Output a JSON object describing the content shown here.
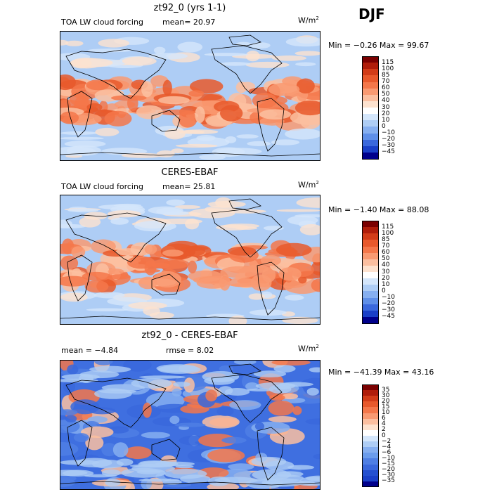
{
  "season": "DJF",
  "panels": [
    {
      "title": "zt92_0 (yrs 1-1)",
      "left_label": "TOA LW cloud forcing",
      "mid_label": "mean=  20.97",
      "unit": "W/m",
      "unit_sup": "2",
      "minmax": "Min =  −0.26 Max =  99.67",
      "colorbar": {
        "levels": [
          "115",
          "100",
          "85",
          "70",
          "60",
          "50",
          "40",
          "30",
          "20",
          "10",
          "0",
          "−10",
          "−20",
          "−30",
          "−45"
        ],
        "colors": [
          "#7a0000",
          "#b01d0a",
          "#d23c18",
          "#e8592c",
          "#f4774a",
          "#f99a72",
          "#fbbfa0",
          "#fde2cf",
          "#ffffff",
          "#d4e6fb",
          "#aecdf5",
          "#86aff0",
          "#5f8fe8",
          "#3a68dc",
          "#1a40c8",
          "#00008b"
        ]
      },
      "chart_data": {
        "type": "heatmap",
        "title": "zt92_0 (yrs 1-1)",
        "variable": "TOA LW cloud forcing",
        "units": "W/m2",
        "mean": 20.97,
        "min": -0.26,
        "max": 99.67,
        "contour_levels": [
          -45,
          -30,
          -20,
          -10,
          0,
          10,
          20,
          30,
          40,
          50,
          60,
          70,
          85,
          100,
          115
        ]
      }
    },
    {
      "title": "CERES-EBAF",
      "left_label": "TOA LW cloud forcing",
      "mid_label": "mean=  25.81",
      "unit": "W/m",
      "unit_sup": "2",
      "minmax": "Min =  −1.40 Max =  88.08",
      "colorbar": {
        "levels": [
          "115",
          "100",
          "85",
          "70",
          "60",
          "50",
          "40",
          "30",
          "20",
          "10",
          "0",
          "−10",
          "−20",
          "−30",
          "−45"
        ],
        "colors": [
          "#7a0000",
          "#b01d0a",
          "#d23c18",
          "#e8592c",
          "#f4774a",
          "#f99a72",
          "#fbbfa0",
          "#fde2cf",
          "#ffffff",
          "#d4e6fb",
          "#aecdf5",
          "#86aff0",
          "#5f8fe8",
          "#3a68dc",
          "#1a40c8",
          "#00008b"
        ]
      },
      "chart_data": {
        "type": "heatmap",
        "title": "CERES-EBAF",
        "variable": "TOA LW cloud forcing",
        "units": "W/m2",
        "mean": 25.81,
        "min": -1.4,
        "max": 88.08,
        "contour_levels": [
          -45,
          -30,
          -20,
          -10,
          0,
          10,
          20,
          30,
          40,
          50,
          60,
          70,
          85,
          100,
          115
        ]
      }
    },
    {
      "title": "zt92_0 - CERES-EBAF",
      "left_label": "mean =   −4.84",
      "mid_label": "rmse =   8.02",
      "unit": "W/m",
      "unit_sup": "2",
      "minmax": "Min = −41.39 Max =  43.16",
      "colorbar": {
        "levels": [
          "35",
          "30",
          "20",
          "15",
          "10",
          "6",
          "4",
          "2",
          "0",
          "−2",
          "−4",
          "−6",
          "−10",
          "−15",
          "−20",
          "−30",
          "−35"
        ],
        "colors": [
          "#7a0000",
          "#b01d0a",
          "#d23c18",
          "#e8592c",
          "#f4774a",
          "#f99a72",
          "#fbbfa0",
          "#fde2cf",
          "#ffffff",
          "#d4e6fb",
          "#aecdf5",
          "#86aff0",
          "#6b9cec",
          "#4f7fe4",
          "#3a68dc",
          "#2450d0",
          "#1a40c8",
          "#00008b"
        ]
      },
      "chart_data": {
        "type": "heatmap",
        "title": "zt92_0 - CERES-EBAF",
        "variable": "TOA LW cloud forcing difference",
        "units": "W/m2",
        "mean": -4.84,
        "rmse": 8.02,
        "min": -41.39,
        "max": 43.16,
        "contour_levels": [
          -35,
          -30,
          -20,
          -15,
          -10,
          -6,
          -4,
          -2,
          0,
          2,
          4,
          6,
          10,
          15,
          20,
          30,
          35
        ]
      }
    }
  ],
  "chart_data": [
    {
      "type": "heatmap",
      "title": "zt92_0 (yrs 1-1)",
      "mean": 20.97,
      "min": -0.26,
      "max": 99.67,
      "units": "W/m2"
    },
    {
      "type": "heatmap",
      "title": "CERES-EBAF",
      "mean": 25.81,
      "min": -1.4,
      "max": 88.08,
      "units": "W/m2"
    },
    {
      "type": "heatmap",
      "title": "zt92_0 - CERES-EBAF",
      "mean": -4.84,
      "rmse": 8.02,
      "min": -41.39,
      "max": 43.16,
      "units": "W/m2"
    }
  ]
}
